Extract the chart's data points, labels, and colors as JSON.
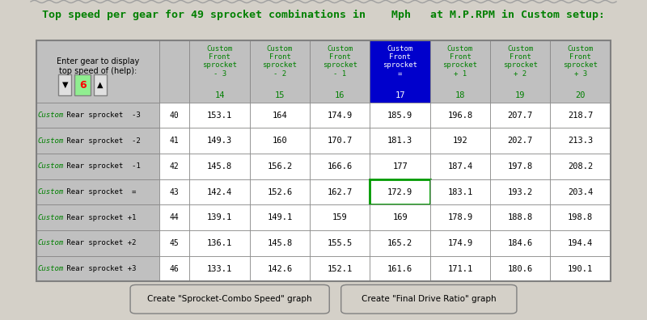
{
  "title": "Top speed per gear for 49 sprocket combinations in    Mph   at M.P.RPM in Custom setup:",
  "header_label": "Enter gear to display\ntop speed of (help):",
  "gear_value": "6",
  "col_headers": [
    "Custom\nFront\nsprocket\n- 3\n14",
    "Custom\nFront\nsprocket\n- 2\n15",
    "Custom\nFront\nsprocket\n- 1\n16",
    "Custom\nFront\nsprocket\n=\n17",
    "Custom\nFront\nsprocket\n+ 1\n18",
    "Custom\nFront\nsprocket\n+ 2\n19",
    "Custom\nFront\nsprocket\n+ 3\n20"
  ],
  "row_labels": [
    "Custom Rear sprocket  -3",
    "Custom Rear sprocket  -2",
    "Custom Rear sprocket  -1",
    "Custom Rear sprocket  =",
    "Custom Rear sprocket +1",
    "Custom Rear sprocket +2",
    "Custom Rear sprocket +3"
  ],
  "row_numbers": [
    "40",
    "41",
    "42",
    "43",
    "44",
    "45",
    "46"
  ],
  "data": [
    [
      "153.1",
      "164",
      "174.9",
      "185.9",
      "196.8",
      "207.7",
      "218.7"
    ],
    [
      "149.3",
      "160",
      "170.7",
      "181.3",
      "192",
      "202.7",
      "213.3"
    ],
    [
      "145.8",
      "156.2",
      "166.6",
      "177",
      "187.4",
      "197.8",
      "208.2"
    ],
    [
      "142.4",
      "152.6",
      "162.7",
      "172.9",
      "183.1",
      "193.2",
      "203.4"
    ],
    [
      "139.1",
      "149.1",
      "159",
      "169",
      "178.9",
      "188.8",
      "198.8"
    ],
    [
      "136.1",
      "145.8",
      "155.5",
      "165.2",
      "174.9",
      "184.6",
      "194.4"
    ],
    [
      "133.1",
      "142.6",
      "152.1",
      "161.6",
      "171.1",
      "180.6",
      "190.1"
    ]
  ],
  "highlight_col": 3,
  "highlight_row": 3,
  "bg_color": "#c0c0c0",
  "header_bg": "#c0c0c0",
  "col_header_color": "#008000",
  "row_label_color": "#008000",
  "data_color": "#000000",
  "title_color": "#008000",
  "highlight_col_header_bg": "#0000cc",
  "highlight_col_header_fg": "#ffffff",
  "highlight_cell_border": "#008000",
  "button1_label": "Create \"Sprocket-Combo Speed\" graph",
  "button2_label": "Create \"Final Drive Ratio\" graph",
  "wavy_line_color": "#c0c0c0",
  "gear_box_bg": "#90ee90",
  "gear_box_fg": "#ff0000"
}
